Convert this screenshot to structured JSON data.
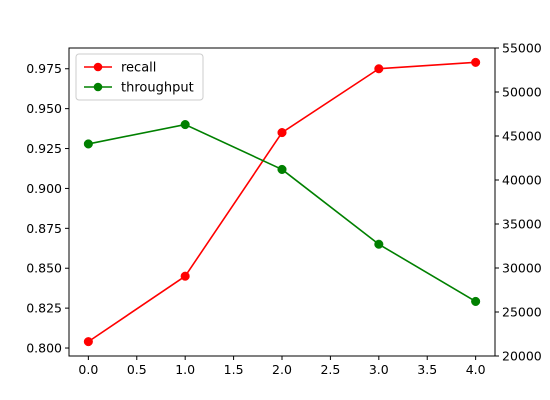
{
  "chart_data": {
    "type": "line",
    "x": [
      0,
      1,
      2,
      3,
      4
    ],
    "xlim": [
      -0.2,
      4.2
    ],
    "x_ticks": [
      0.0,
      0.5,
      1.0,
      1.5,
      2.0,
      2.5,
      3.0,
      3.5,
      4.0
    ],
    "x_tick_labels": [
      "0.0",
      "0.5",
      "1.0",
      "1.5",
      "2.0",
      "2.5",
      "3.0",
      "3.5",
      "4.0"
    ],
    "y_left": {
      "ylim": [
        0.795,
        0.988
      ],
      "ticks": [
        0.8,
        0.825,
        0.85,
        0.875,
        0.9,
        0.925,
        0.95,
        0.975
      ],
      "tick_labels": [
        "0.800",
        "0.825",
        "0.850",
        "0.875",
        "0.900",
        "0.925",
        "0.950",
        "0.975"
      ]
    },
    "y_right": {
      "ylim": [
        20000,
        55000
      ],
      "ticks": [
        20000,
        25000,
        30000,
        35000,
        40000,
        45000,
        50000,
        55000
      ],
      "tick_labels": [
        "20000",
        "25000",
        "30000",
        "35000",
        "40000",
        "45000",
        "50000",
        "55000"
      ]
    },
    "series": [
      {
        "name": "recall",
        "axis": "left",
        "color": "#ff0000",
        "values": [
          0.804,
          0.845,
          0.935,
          0.975,
          0.979
        ]
      },
      {
        "name": "throughput",
        "axis": "right",
        "color": "#008000",
        "values": [
          44100,
          46300,
          41200,
          32700,
          26200
        ]
      }
    ],
    "legend": {
      "position": "top-left",
      "entries": [
        "recall",
        "throughput"
      ]
    },
    "grid": false,
    "title": "",
    "xlabel": "",
    "ylabel": ""
  }
}
